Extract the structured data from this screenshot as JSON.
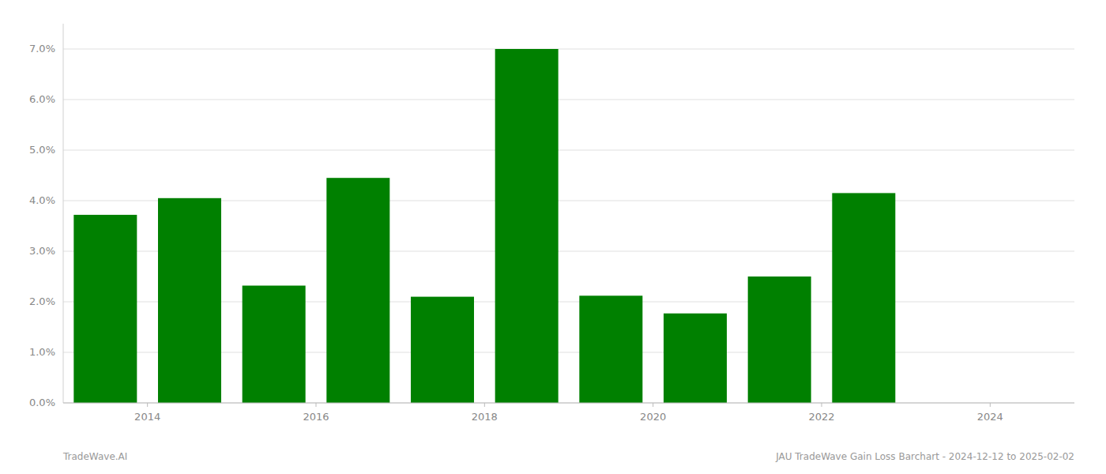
{
  "chart_data": {
    "type": "bar",
    "x": [
      2013.5,
      2014.5,
      2015.5,
      2016.5,
      2017.5,
      2018.5,
      2019.5,
      2020.5,
      2021.5,
      2022.5
    ],
    "values": [
      3.72,
      4.05,
      2.32,
      4.45,
      2.1,
      7.0,
      2.12,
      1.77,
      2.5,
      4.15
    ],
    "color": "#008000",
    "xlim": [
      2013.0,
      2025.0
    ],
    "xticks": [
      2014,
      2016,
      2018,
      2020,
      2022,
      2024
    ],
    "ylim": [
      0,
      7.5
    ],
    "yticks": [
      {
        "value": 0.0,
        "label": "0.0%"
      },
      {
        "value": 1.0,
        "label": "1.0%"
      },
      {
        "value": 2.0,
        "label": "2.0%"
      },
      {
        "value": 3.0,
        "label": "3.0%"
      },
      {
        "value": 4.0,
        "label": "4.0%"
      },
      {
        "value": 5.0,
        "label": "5.0%"
      },
      {
        "value": 6.0,
        "label": "6.0%"
      },
      {
        "value": 7.0,
        "label": "7.0%"
      }
    ],
    "grid": true,
    "annotations": [
      "TradeWave.AI",
      "JAU TradeWave Gain Loss Barchart - 2024-12-12 to 2025-02-02"
    ]
  }
}
